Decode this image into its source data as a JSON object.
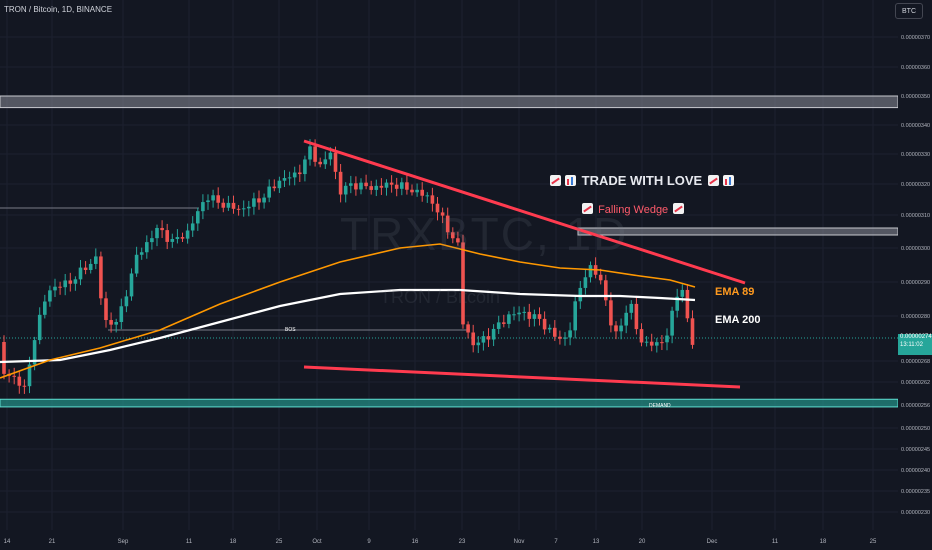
{
  "header": {
    "pair_title": "TRON / Bitcoin, 1D, BINANCE",
    "currency_button": "BTC"
  },
  "watermark": {
    "main": "TRXBTC, 1D",
    "sub": "TRON / Bitcoin"
  },
  "annotations": {
    "trade_with_love": "TRADE WITH LOVE",
    "falling_wedge": "Falling Wedge",
    "ema89": "EMA 89",
    "ema200": "EMA 200",
    "bos": "BOS",
    "demand": "DEMAND"
  },
  "current_price": {
    "value": "0.00000274",
    "countdown": "13:11:02"
  },
  "colors": {
    "background": "#131722",
    "up": "#26a69a",
    "down": "#ef5350",
    "ema89": "#ff9800",
    "ema200": "#ffffff",
    "wedge": "#ff3b4f",
    "demand": "#26a69a",
    "supply": "#9598a1"
  },
  "chart_data": {
    "type": "candlestick",
    "x_axis_labels": [
      "14",
      "21",
      "Sep",
      "11",
      "18",
      "25",
      "Oct",
      "9",
      "16",
      "23",
      "Nov",
      "7",
      "13",
      "20",
      "Dec",
      "11",
      "18",
      "25"
    ],
    "y_axis_labels": [
      "0.00000370",
      "0.00000360",
      "0.00000350",
      "0.00000340",
      "0.00000330",
      "0.00000320",
      "0.00000310",
      "0.00000300",
      "0.00000290",
      "0.00000280",
      "0.00000268",
      "0.00000262",
      "0.00000256",
      "0.00000250",
      "0.00000245",
      "0.00000240",
      "0.00000235",
      "0.00000230"
    ],
    "y_values": [
      3.7e-06,
      3.6e-06,
      3.5e-06,
      3.4e-06,
      3.3e-06,
      3.2e-06,
      3.1e-06,
      3e-06,
      2.9e-06,
      2.8e-06,
      2.68e-06,
      2.62e-06,
      2.56e-06,
      2.5e-06,
      2.45e-06,
      2.4e-06,
      2.35e-06,
      2.3e-06
    ],
    "wedge_upper": [
      [
        "Sep 27",
        3.31e-06
      ],
      [
        "Nov 29",
        2.91e-06
      ]
    ],
    "wedge_lower": [
      [
        "Sep 27",
        2.67e-06
      ],
      [
        "Nov 29",
        2.61e-06
      ]
    ],
    "supply_zone": [
      3.5e-06,
      3.46e-06
    ],
    "demand_zone": [
      2.575e-06,
      2.555e-06
    ],
    "bos_level": 2.8e-06,
    "current_price": 2.74e-06,
    "ema89_close": 2.89e-06,
    "ema200_close": 2.84e-06
  }
}
